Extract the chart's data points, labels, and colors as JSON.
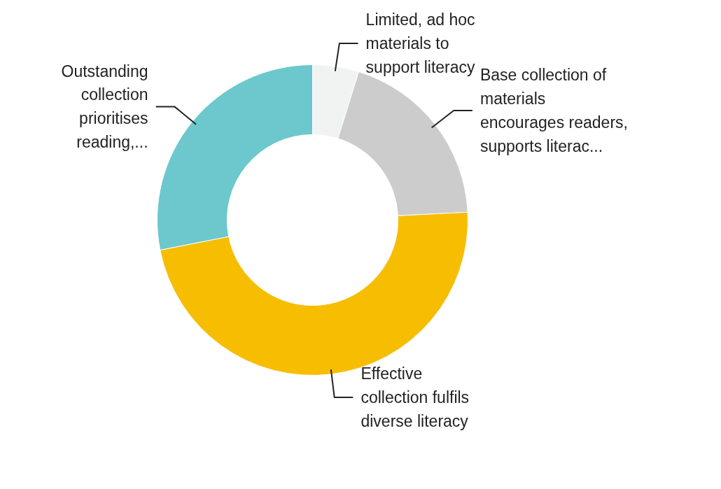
{
  "chart_data": {
    "type": "donut",
    "categories": [
      "Limited, ad hoc materials to support literacy",
      "Base collection of materials encourages readers, supports literac...",
      "Effective collection fulfils diverse literacy",
      "Outstanding collection prioritises reading,..."
    ],
    "values": [
      4.8,
      19.4,
      47.7,
      28.1
    ],
    "colors": [
      "#f0f3f2",
      "#cccccc",
      "#f7bd00",
      "#6cc8cc"
    ]
  }
}
